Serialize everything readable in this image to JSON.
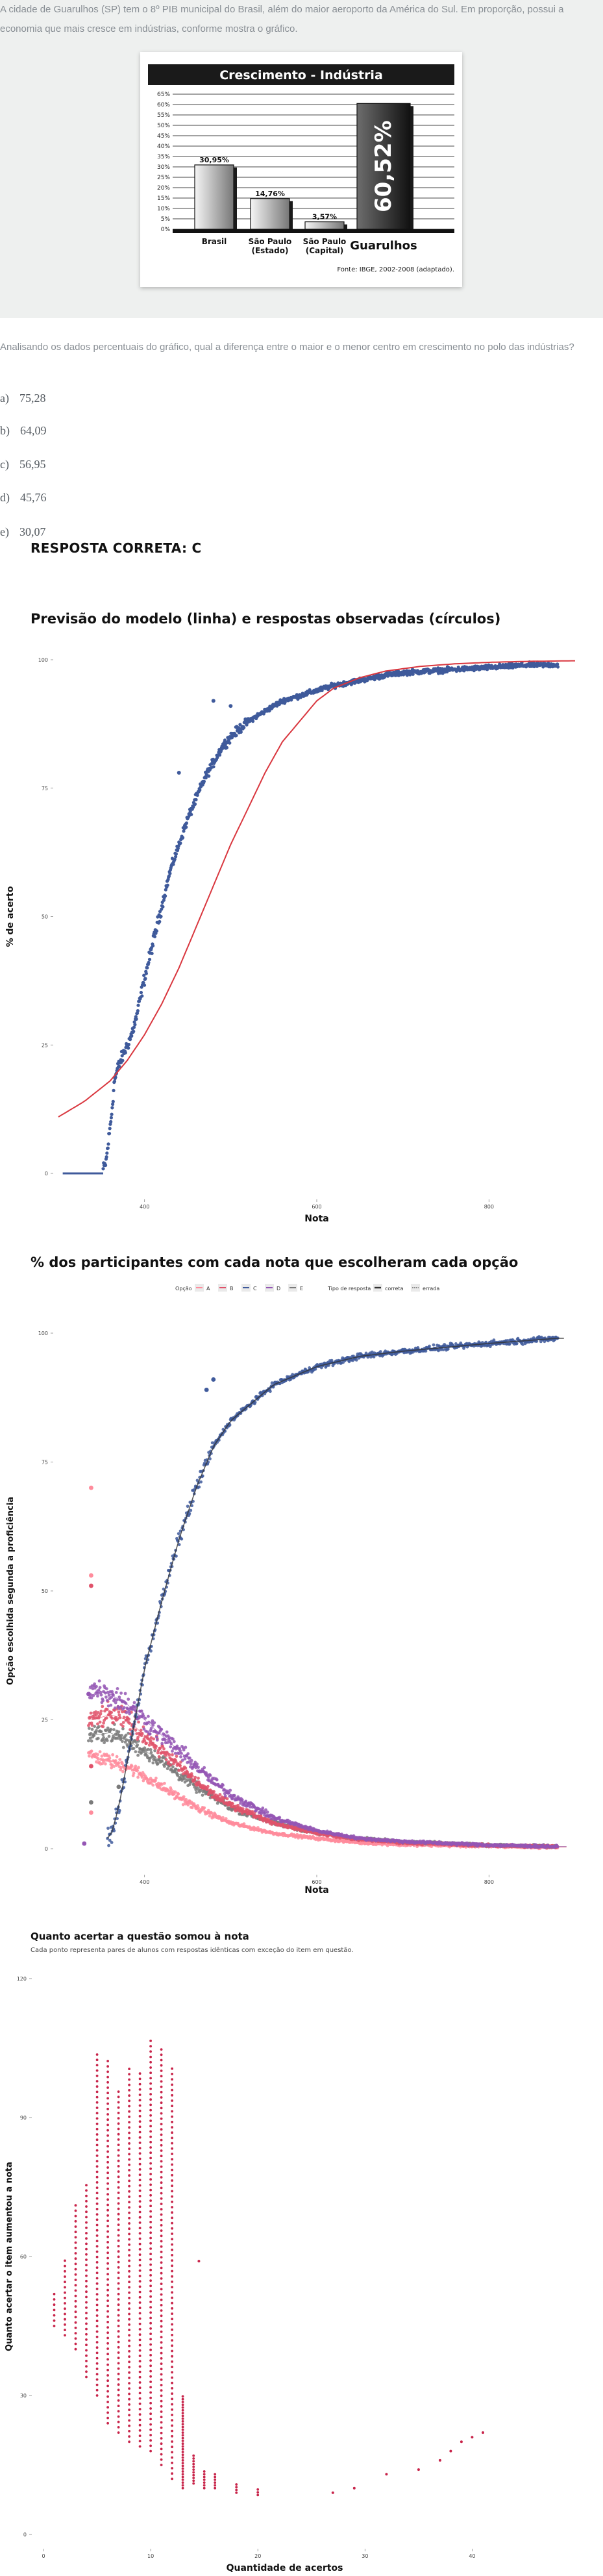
{
  "question": {
    "intro": "A cidade de Guarulhos (SP) tem o 8º PIB municipal do Brasil, além do maior aeroporto da América do Sul. Em proporção, possui a economia que mais cresce em indústrias, conforme mostra o gráfico.",
    "stem": "Analisando os dados percentuais do gráfico, qual a diferença entre o maior e o menor centro em crescimento no polo das indústrias?",
    "alternatives": [
      {
        "letter": "a)",
        "text": "75,28"
      },
      {
        "letter": "b)",
        "text": "64,09"
      },
      {
        "letter": "c)",
        "text": "56,95"
      },
      {
        "letter": "d)",
        "text": "45,76"
      },
      {
        "letter": "e)",
        "text": "30,07"
      }
    ],
    "correct_answer": "RESPOSTA CORRETA: C"
  },
  "section_titles": {
    "model": "Previsão do modelo (linha) e respostas observadas (círculos)",
    "options": "% dos participantes com cada nota que escolheram cada opção",
    "gain": "Quanto acertar a questão somou à nota",
    "gain_subtitle": "Cada ponto representa pares de alunos com respostas idênticas com exceção do item em questão."
  },
  "colors": {
    "background_question": "#eef0ef",
    "observed_points": "#3f5a9b",
    "model_line": "#d9363e",
    "option_A": "#ff8c9c",
    "option_B": "#e0526a",
    "option_C": "#3f5a9b",
    "option_D": "#9456b4",
    "option_E": "#7a7a7a",
    "gain_points": "#c8244a"
  },
  "chart_data": [
    {
      "type": "bar",
      "title": "Crescimento - Indústria",
      "categories": [
        "Brasil",
        "São Paulo (Estado)",
        "São Paulo (Capital)",
        "Guarulhos"
      ],
      "category_lines": [
        [
          "Brasil"
        ],
        [
          "São Paulo",
          "(Estado)"
        ],
        [
          "São Paulo",
          "(Capital)"
        ],
        [
          "Guarulhos"
        ]
      ],
      "values": [
        30.95,
        14.76,
        3.57,
        60.52
      ],
      "value_labels": [
        "30,95%",
        "14,76%",
        "3,57%",
        "60,52%"
      ],
      "yticks": [
        "0%",
        "5%",
        "10%",
        "15%",
        "20%",
        "25%",
        "30%",
        "35%",
        "40%",
        "45%",
        "50%",
        "55%",
        "60%",
        "65%"
      ],
      "ylim": [
        0,
        65
      ],
      "source": "Fonte: IBGE, 2002-2008 (adaptado)."
    },
    {
      "type": "scatter",
      "title": "Previsão do modelo (linha) e respostas observadas (círculos)",
      "xlabel": "Nota",
      "ylabel": "% de acerto",
      "xlim": [
        300,
        900
      ],
      "ylim": [
        0,
        100
      ],
      "xticks": [
        400,
        600,
        800
      ],
      "yticks": [
        0,
        25,
        50,
        75,
        100
      ],
      "series": [
        {
          "kind": "points",
          "x": [
            340,
            350,
            355,
            358,
            362,
            365,
            370,
            375,
            380,
            385,
            390,
            395,
            400,
            410,
            420,
            430,
            440,
            450,
            460,
            470,
            480,
            490,
            500,
            520,
            540,
            560,
            580,
            600,
            620,
            650,
            680,
            700,
            750,
            800,
            850,
            880
          ],
          "y": [
            0,
            0,
            2,
            6,
            12,
            18,
            21,
            23,
            25,
            27,
            30,
            34,
            38,
            45,
            52,
            59,
            64,
            69,
            73,
            77,
            80,
            83,
            85,
            88,
            90,
            92,
            93,
            94,
            95,
            96,
            97,
            97.5,
            98,
            98.5,
            99,
            99
          ]
        },
        {
          "kind": "line",
          "x": [
            300,
            330,
            360,
            380,
            400,
            420,
            440,
            460,
            480,
            500,
            520,
            540,
            560,
            580,
            600,
            620,
            650,
            680,
            720,
            760,
            800,
            850,
            900
          ],
          "y": [
            11,
            14,
            18,
            22,
            27,
            33,
            40,
            48,
            56,
            64,
            71,
            78,
            84,
            88,
            92,
            94.5,
            96.5,
            97.8,
            98.7,
            99.2,
            99.5,
            99.7,
            99.8
          ]
        }
      ]
    },
    {
      "type": "scatter",
      "title": "% dos participantes com cada nota que escolheram cada opção",
      "xlabel": "Nota",
      "ylabel": "Opção escolhida segunda a proficiência",
      "legend": {
        "option_title": "Opção",
        "options": [
          "A",
          "B",
          "C",
          "D",
          "E"
        ],
        "type_title": "Tipo de resposta",
        "types": [
          "correta",
          "errada"
        ],
        "placement": "top"
      },
      "xlim": [
        300,
        900
      ],
      "ylim": [
        0,
        100
      ],
      "xticks": [
        400,
        600,
        800
      ],
      "yticks": [
        0,
        25,
        50,
        75,
        100
      ],
      "series": [
        {
          "name": "A",
          "x": [
            340,
            360,
            380,
            400,
            420,
            440,
            460,
            480,
            500,
            550,
            600,
            650,
            700,
            800,
            880
          ],
          "y": [
            18,
            17,
            16,
            14,
            12,
            10,
            8,
            6.5,
            5,
            3,
            2,
            1.2,
            0.8,
            0.5,
            0.3
          ]
        },
        {
          "name": "B",
          "x": [
            340,
            360,
            380,
            400,
            420,
            440,
            460,
            480,
            500,
            550,
            600,
            650,
            700,
            800,
            880
          ],
          "y": [
            25,
            26,
            25,
            22,
            19,
            16,
            13,
            10.5,
            8.5,
            5,
            3,
            1.8,
            1.2,
            0.6,
            0.4
          ]
        },
        {
          "name": "C",
          "x": [
            360,
            370,
            380,
            390,
            400,
            420,
            440,
            460,
            480,
            500,
            550,
            600,
            650,
            700,
            800,
            880
          ],
          "y": [
            2,
            8,
            17,
            26,
            35,
            48,
            60,
            70,
            78,
            83,
            90,
            93.5,
            95.5,
            96.5,
            98,
            99
          ]
        },
        {
          "name": "D",
          "x": [
            340,
            360,
            380,
            400,
            420,
            440,
            460,
            480,
            500,
            550,
            600,
            650,
            700,
            800,
            880
          ],
          "y": [
            31,
            30,
            28,
            25,
            22,
            19,
            16,
            13,
            10.5,
            6,
            3.5,
            2,
            1.4,
            0.7,
            0.4
          ]
        },
        {
          "name": "E",
          "x": [
            340,
            360,
            380,
            400,
            420,
            440,
            460,
            480,
            500,
            550,
            600,
            650,
            700,
            800,
            880
          ],
          "y": [
            22,
            22.5,
            21,
            19,
            17,
            14.5,
            12,
            10,
            8,
            5,
            3,
            2,
            1.3,
            0.7,
            0.4
          ]
        }
      ]
    },
    {
      "type": "scatter",
      "title": "Quanto acertar a questão somou à nota",
      "subtitle": "Cada ponto representa pares de alunos com respostas idênticas com exceção do item em questão.",
      "xlabel": "Quantidade de acertos",
      "ylabel": "Quanto acertar o item aumentou a nota",
      "xlim": [
        0,
        45
      ],
      "ylim": [
        0,
        120
      ],
      "xticks": [
        0,
        10,
        20,
        30,
        40
      ],
      "yticks": [
        0,
        30,
        60,
        90,
        120
      ],
      "columns": [
        {
          "x": 1,
          "min": 45,
          "max": 53
        },
        {
          "x": 2,
          "min": 43,
          "max": 60
        },
        {
          "x": 3,
          "min": 40,
          "max": 72
        },
        {
          "x": 4,
          "min": 34,
          "max": 76
        },
        {
          "x": 5,
          "min": 30,
          "max": 104
        },
        {
          "x": 6,
          "min": 24,
          "max": 103
        },
        {
          "x": 7,
          "min": 22,
          "max": 96
        },
        {
          "x": 8,
          "min": 20,
          "max": 101
        },
        {
          "x": 9,
          "min": 19,
          "max": 100
        },
        {
          "x": 10,
          "min": 18,
          "max": 107
        },
        {
          "x": 11,
          "min": 15,
          "max": 105
        },
        {
          "x": 12,
          "min": 12,
          "max": 101
        },
        {
          "x": 13,
          "min": 10,
          "max": 30
        },
        {
          "x": 14,
          "min": 11,
          "max": 17
        },
        {
          "x": 15,
          "min": 10,
          "max": 14
        },
        {
          "x": 16,
          "min": 10,
          "max": 13
        },
        {
          "x": 18,
          "min": 9,
          "max": 11
        },
        {
          "x": 20,
          "min": 8.5,
          "max": 10
        }
      ],
      "extra_points": [
        {
          "x": 14.5,
          "y": 59
        },
        {
          "x": 27,
          "y": 9
        },
        {
          "x": 29,
          "y": 10
        },
        {
          "x": 32,
          "y": 13
        },
        {
          "x": 35,
          "y": 14
        },
        {
          "x": 37,
          "y": 16
        },
        {
          "x": 38,
          "y": 18
        },
        {
          "x": 39,
          "y": 20
        },
        {
          "x": 40,
          "y": 21
        },
        {
          "x": 41,
          "y": 22
        }
      ]
    }
  ]
}
